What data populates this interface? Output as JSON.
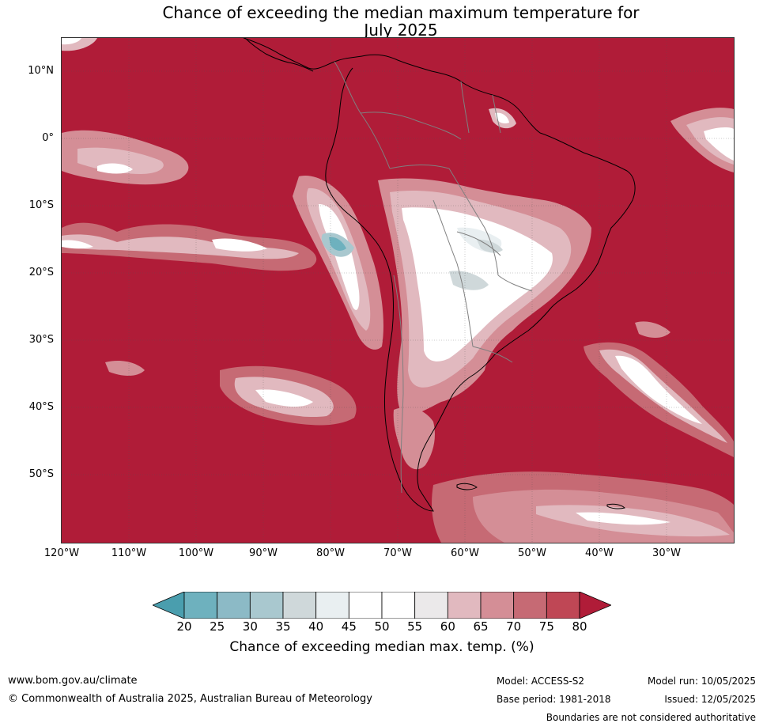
{
  "title_line1": "Chance of exceeding the median maximum temperature for",
  "title_line2": "July 2025",
  "lat_labels": [
    "10°N",
    "0°",
    "10°S",
    "20°S",
    "30°S",
    "40°S",
    "50°S"
  ],
  "lon_labels": [
    "120°W",
    "110°W",
    "100°W",
    "90°W",
    "80°W",
    "70°W",
    "60°W",
    "50°W",
    "40°W",
    "30°W"
  ],
  "colorbar": {
    "ticks": [
      "20",
      "25",
      "30",
      "35",
      "40",
      "45",
      "50",
      "55",
      "60",
      "65",
      "70",
      "75",
      "80"
    ],
    "colors": [
      "#4a9eae",
      "#6eb1be",
      "#8cbac6",
      "#a9c8cf",
      "#cfd8da",
      "#e9eff1",
      "#ffffff",
      "#ffffff",
      "#ebe9ea",
      "#e1b9bf",
      "#d48e96",
      "#c66a74",
      "#bf4755",
      "#b01c38"
    ],
    "label": "Chance of exceeding median max. temp. (%)"
  },
  "map_colors": {
    "background": "#b01c38",
    "level_75": "#bf4755",
    "level_70": "#c66a74",
    "level_65": "#d48e96",
    "level_60": "#e1b9bf",
    "level_55": "#ebe9ea",
    "level_50": "#ffffff",
    "level_40": "#e9eff1",
    "level_35": "#cfd8da",
    "level_25": "#8cbac6",
    "coast": "#000000",
    "border": "#808080"
  },
  "footer": {
    "url": "www.bom.gov.au/climate",
    "copyright": "© Commonwealth of Australia 2025, Australian Bureau of Meteorology",
    "model": "Model: ACCESS-S2",
    "base_period": "Base period: 1981-2018",
    "model_run": "Model run: 10/05/2025",
    "issued": "Issued: 12/05/2025",
    "boundaries_note": "Boundaries are not considered authoritative"
  }
}
